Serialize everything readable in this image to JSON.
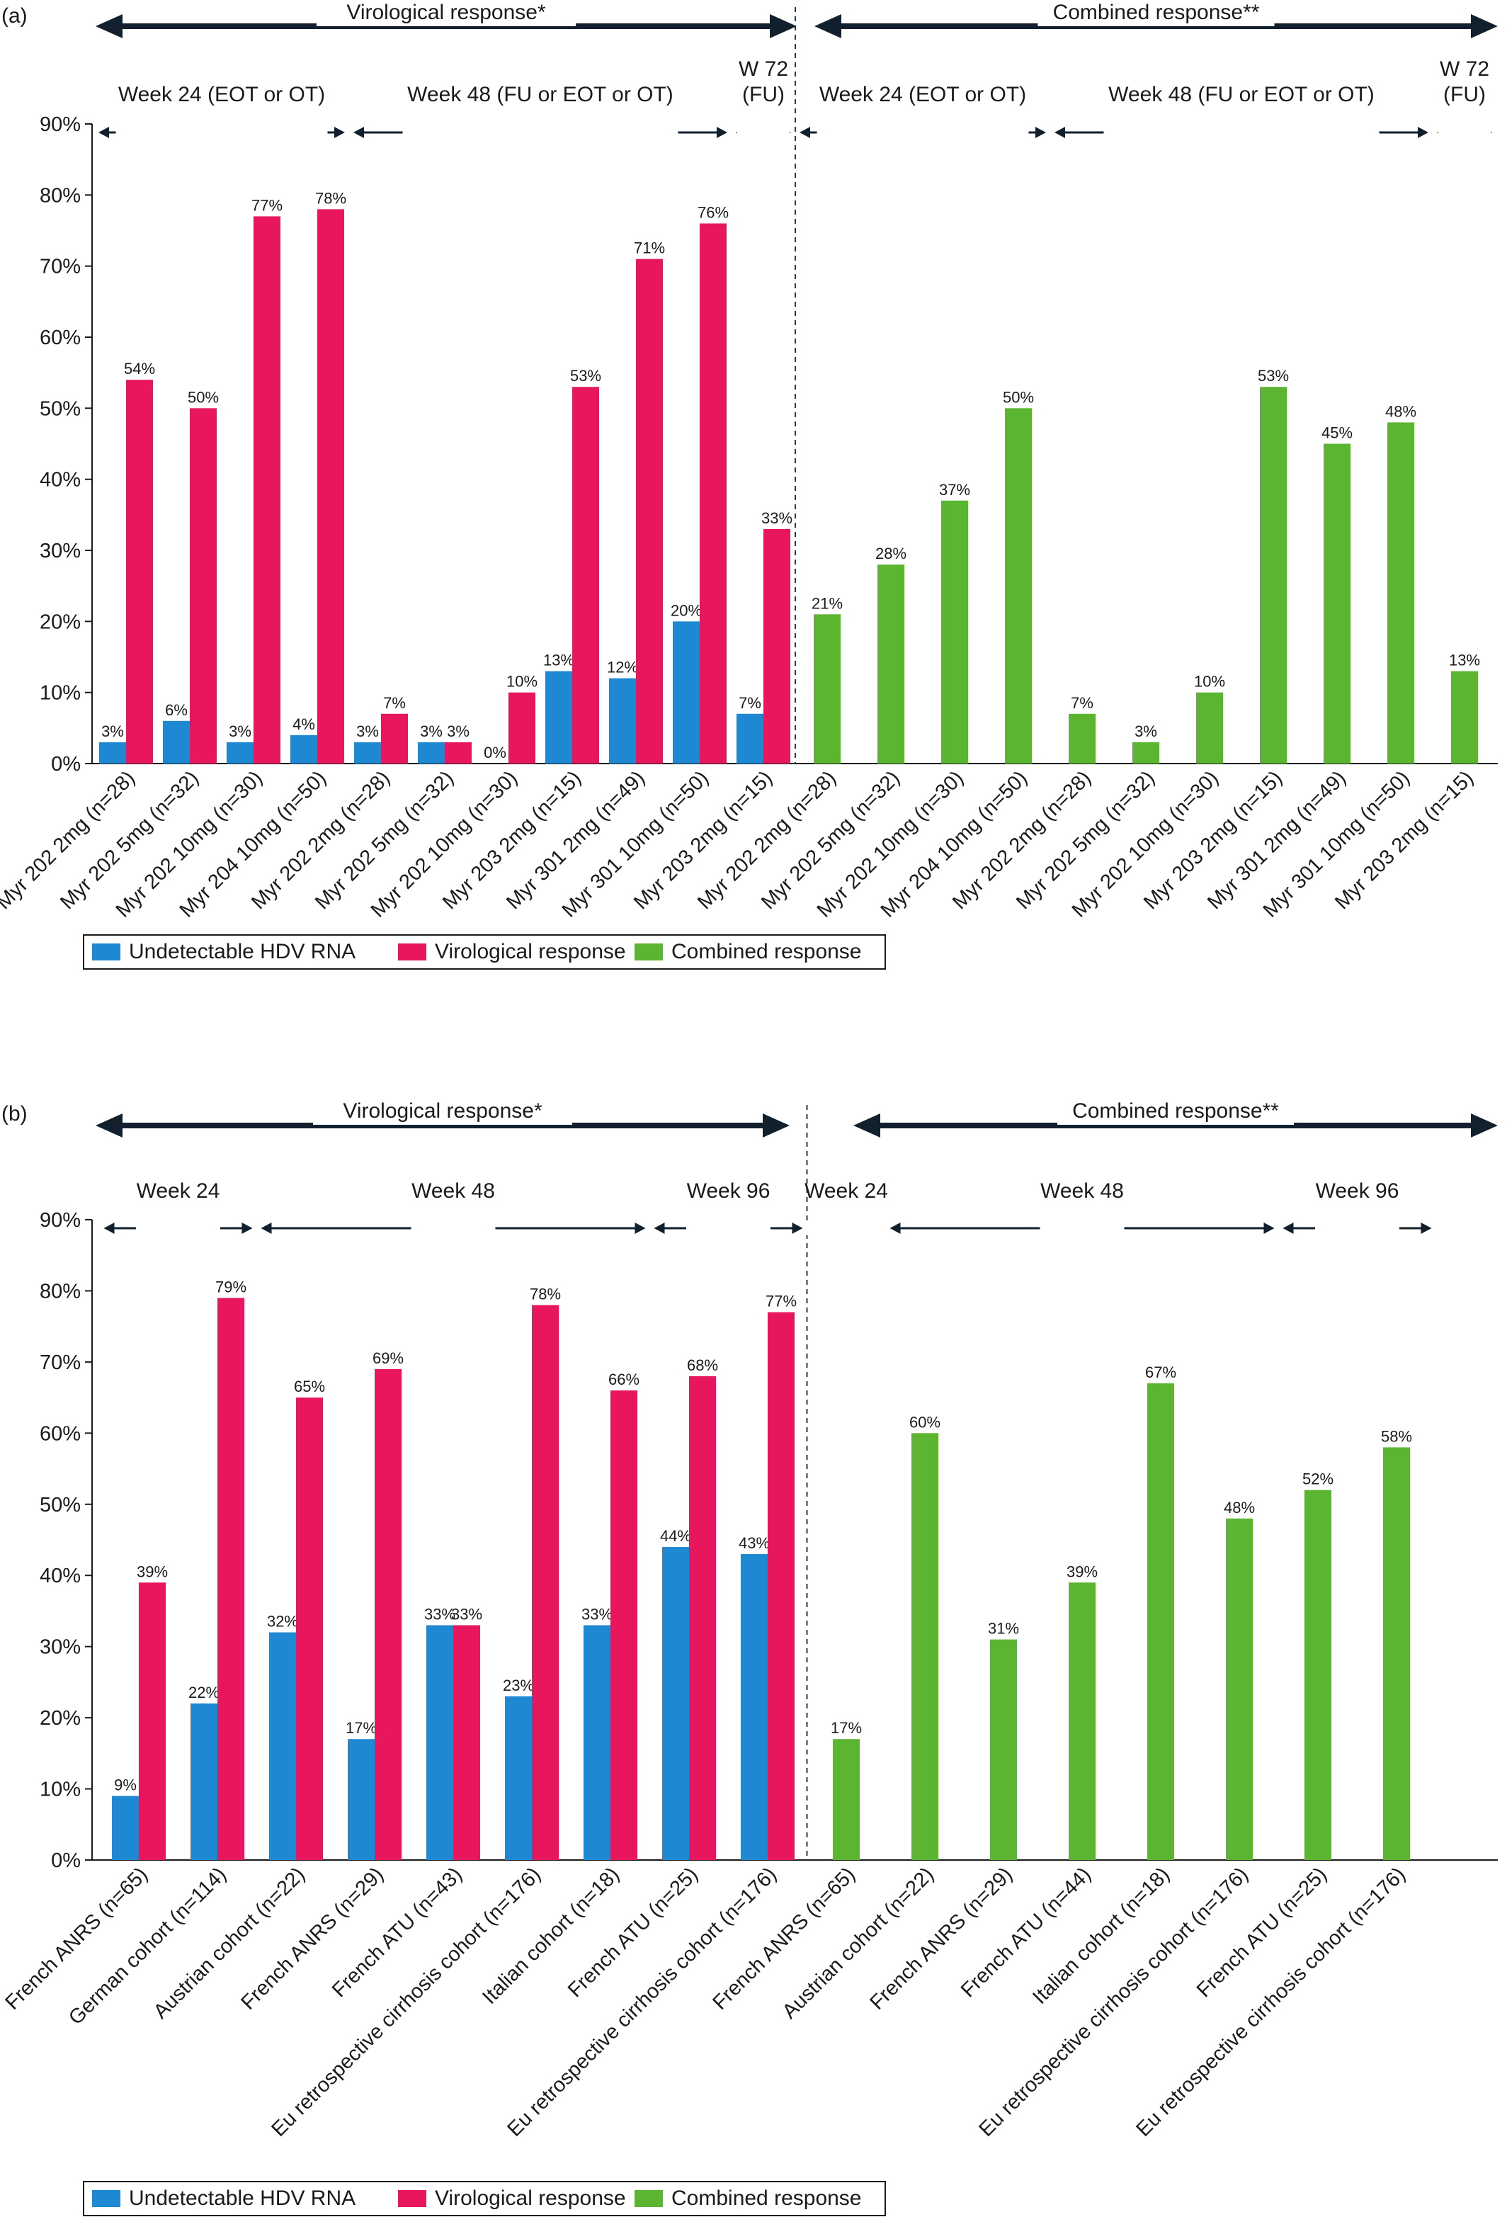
{
  "colors": {
    "undetectable": "#1e88d2",
    "virological": "#e8175d",
    "combined": "#5cb531",
    "axis": "#1a1a1a",
    "arrow": "#12202e"
  },
  "chart_data": [
    {
      "type": "bar",
      "panel_label": "(a)",
      "ylim": [
        0,
        90
      ],
      "y_ticks": [
        "0%",
        "10%",
        "20%",
        "30%",
        "40%",
        "50%",
        "60%",
        "70%",
        "80%",
        "90%"
      ],
      "grid": false,
      "legend_position": "bottom-left",
      "headers": [
        {
          "text": "Virological response*",
          "span": [
            0,
            10
          ]
        },
        {
          "text": "Combined response**",
          "span": [
            11,
            21
          ]
        }
      ],
      "subheaders": [
        {
          "lines": [
            "Week 24 (EOT or OT)"
          ],
          "span": [
            0,
            3
          ]
        },
        {
          "lines": [
            "Week 48 (FU or EOT or OT)"
          ],
          "span": [
            4,
            9
          ]
        },
        {
          "lines": [
            "W 72",
            "(FU)"
          ],
          "span": [
            10,
            10
          ]
        },
        {
          "lines": [
            "Week 24 (EOT or OT)"
          ],
          "span": [
            11,
            14
          ]
        },
        {
          "lines": [
            "Week 48 (FU or EOT or OT)"
          ],
          "span": [
            15,
            20
          ]
        },
        {
          "lines": [
            "W 72",
            "(FU)"
          ],
          "span": [
            21,
            21
          ]
        }
      ],
      "divider_after": 10,
      "categories": [
        "Myr 202 2mg (n=28)",
        "Myr 202 5mg (n=32)",
        "Myr 202 10mg (n=30)",
        "Myr 204 10mg (n=50)",
        "Myr 202 2mg (n=28)",
        "Myr 202 5mg (n=32)",
        "Myr 202 10mg (n=30)",
        "Myr 203 2mg (n=15)",
        "Myr 301 2mg (n=49)",
        "Myr 301 10mg (n=50)",
        "Myr 203 2mg (n=15)",
        "Myr 202 2mg (n=28)",
        "Myr 202 5mg (n=32)",
        "Myr 202 10mg (n=30)",
        "Myr 204 10mg (n=50)",
        "Myr 202 2mg (n=28)",
        "Myr 202 5mg (n=32)",
        "Myr 202 10mg (n=30)",
        "Myr 203 2mg (n=15)",
        "Myr 301 2mg (n=49)",
        "Myr 301 10mg (n=50)",
        "Myr 203 2mg (n=15)"
      ],
      "series": [
        {
          "name": "Undetectable HDV RNA",
          "color": "#1e88d2",
          "values": [
            3,
            6,
            3,
            4,
            3,
            3,
            0,
            13,
            12,
            20,
            7,
            null,
            null,
            null,
            null,
            null,
            null,
            null,
            null,
            null,
            null,
            null
          ],
          "labels": [
            "3%",
            "6%",
            "3%",
            "4%",
            "3%",
            "3%",
            "0%",
            "13%",
            "12%",
            "20%",
            "7%",
            null,
            null,
            null,
            null,
            null,
            null,
            null,
            null,
            null,
            null,
            null
          ]
        },
        {
          "name": "Virological response",
          "color": "#e8175d",
          "values": [
            54,
            50,
            77,
            78,
            7,
            3,
            10,
            53,
            71,
            76,
            33,
            null,
            null,
            null,
            null,
            null,
            null,
            null,
            null,
            null,
            null,
            null
          ],
          "labels": [
            "54%",
            "50%",
            "77%",
            "78%",
            "7%",
            "3%",
            "10%",
            "53%",
            "71%",
            "76%",
            "33%",
            null,
            null,
            null,
            null,
            null,
            null,
            null,
            null,
            null,
            null,
            null
          ]
        },
        {
          "name": "Combined response",
          "color": "#5cb531",
          "values": [
            null,
            null,
            null,
            null,
            null,
            null,
            null,
            null,
            null,
            null,
            null,
            21,
            28,
            37,
            50,
            7,
            3,
            10,
            53,
            45,
            48,
            13
          ],
          "labels": [
            null,
            null,
            null,
            null,
            null,
            null,
            null,
            null,
            null,
            null,
            null,
            "21%",
            "28%",
            "37%",
            "50%",
            "7%",
            "3%",
            "10%",
            "53%",
            "45%",
            "48%",
            "13%"
          ]
        }
      ]
    },
    {
      "type": "bar",
      "panel_label": "(b)",
      "ylim": [
        0,
        90
      ],
      "y_ticks": [
        "0%",
        "10%",
        "20%",
        "30%",
        "40%",
        "50%",
        "60%",
        "70%",
        "80%",
        "90%"
      ],
      "grid": false,
      "legend_position": "bottom-left",
      "headers": [
        {
          "text": "Virological response*",
          "span": [
            0,
            8
          ]
        },
        {
          "text": "Combined response**",
          "span": [
            9,
            16
          ]
        }
      ],
      "subheaders": [
        {
          "lines": [
            "Week 24"
          ],
          "span": [
            0,
            1
          ]
        },
        {
          "lines": [
            "Week 48"
          ],
          "span": [
            2,
            6
          ]
        },
        {
          "lines": [
            "Week 96"
          ],
          "span": [
            7,
            8
          ]
        },
        {
          "lines": [
            "Week 24"
          ],
          "span": [
            9,
            9
          ]
        },
        {
          "lines": [
            "Week 48"
          ],
          "span": [
            10,
            14
          ]
        },
        {
          "lines": [
            "Week 96"
          ],
          "span": [
            15,
            16
          ]
        }
      ],
      "divider_after": 8,
      "categories": [
        "French ANRS (n=65)",
        "German cohort (n=114)",
        "Austrian cohort (n=22)",
        "French ANRS (n=29)",
        "French ATU (n=43)",
        "Eu retrospective cirrhosis cohort (n=176)",
        "Italian cohort (n=18)",
        "French ATU (n=25)",
        "Eu retrospective cirrhosis cohort (n=176)",
        "French ANRS (n=65)",
        "Austrian cohort (n=22)",
        "French ANRS (n=29)",
        "French ATU (n=44)",
        "Italian cohort (n=18)",
        "Eu retrospective cirrhosis cohort (n=176)",
        "French ATU (n=25)",
        "Eu retrospective cirrhosis cohort (n=176)"
      ],
      "series": [
        {
          "name": "Undetectable HDV RNA",
          "color": "#1e88d2",
          "values": [
            9,
            22,
            32,
            17,
            33,
            23,
            33,
            44,
            43,
            null,
            null,
            null,
            null,
            null,
            null,
            null,
            null
          ],
          "labels": [
            "9%",
            "22%",
            "32%",
            "17%",
            "33%",
            "23%",
            "33%",
            "44%",
            "43%",
            null,
            null,
            null,
            null,
            null,
            null,
            null,
            null
          ]
        },
        {
          "name": "Virological response",
          "color": "#e8175d",
          "values": [
            39,
            79,
            65,
            69,
            33,
            78,
            66,
            68,
            77,
            null,
            null,
            null,
            null,
            null,
            null,
            null,
            null
          ],
          "labels": [
            "39%",
            "79%",
            "65%",
            "69%",
            "33%",
            "78%",
            "66%",
            "68%",
            "77%",
            null,
            null,
            null,
            null,
            null,
            null,
            null,
            null
          ]
        },
        {
          "name": "Combined response",
          "color": "#5cb531",
          "values": [
            null,
            null,
            null,
            null,
            null,
            null,
            null,
            null,
            null,
            17,
            60,
            31,
            39,
            67,
            48,
            52,
            58
          ],
          "labels": [
            null,
            null,
            null,
            null,
            null,
            null,
            null,
            null,
            null,
            "17%",
            "60%",
            "31%",
            "39%",
            "67%",
            "48%",
            "52%",
            "58%"
          ]
        }
      ]
    }
  ]
}
